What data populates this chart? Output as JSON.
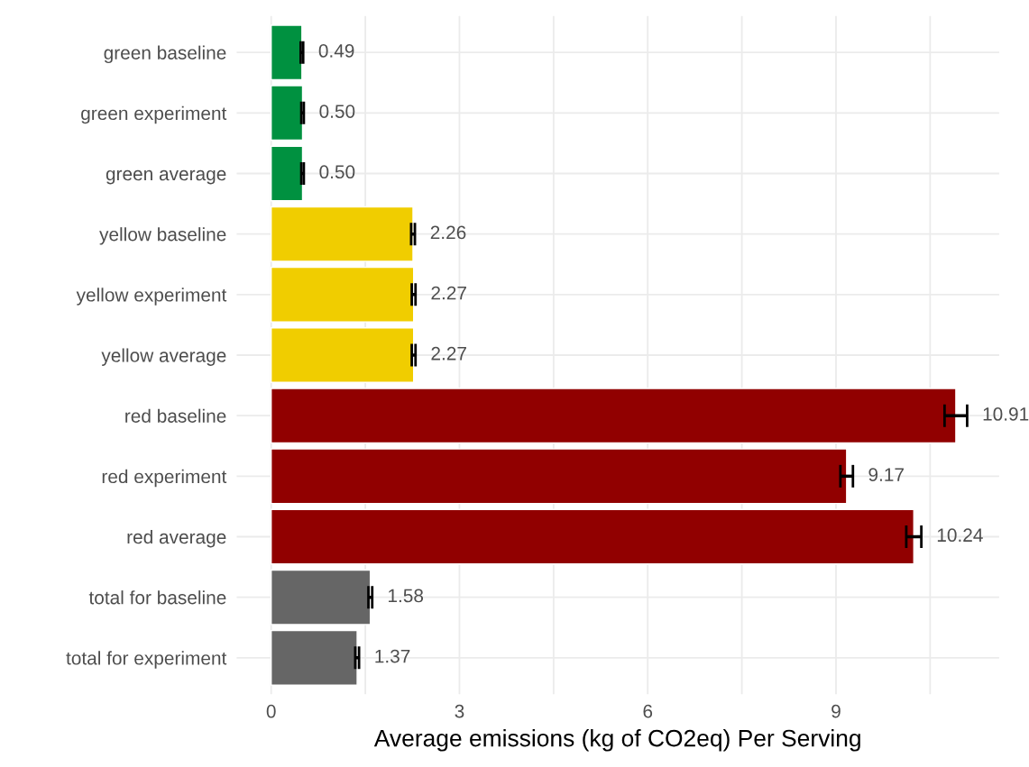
{
  "chart_data": {
    "type": "bar",
    "orientation": "horizontal",
    "xlabel": "Average emissions (kg of CO2eq) Per Serving",
    "categories": [
      "green baseline",
      "green experiment",
      "green average",
      "yellow baseline",
      "yellow experiment",
      "yellow average",
      "red baseline",
      "red experiment",
      "red average",
      "total for baseline",
      "total for experiment"
    ],
    "values": [
      0.49,
      0.5,
      0.5,
      2.26,
      2.27,
      2.27,
      10.91,
      9.17,
      10.24,
      1.58,
      1.37
    ],
    "errors": [
      0.02,
      0.02,
      0.02,
      0.03,
      0.03,
      0.03,
      0.18,
      0.1,
      0.12,
      0.03,
      0.03
    ],
    "value_labels": [
      "0.49",
      "0.50",
      "0.50",
      "2.26",
      "2.27",
      "2.27",
      "10.91",
      "9.17",
      "10.24",
      "1.58",
      "1.37"
    ],
    "colors": [
      "#009140",
      "#009140",
      "#009140",
      "#f0cd00",
      "#f0cd00",
      "#f0cd00",
      "#910000",
      "#910000",
      "#910000",
      "#666666",
      "#666666"
    ],
    "xlim": [
      -0.55,
      11.6
    ],
    "xticks": [
      0,
      {
        "value": 1.5,
        "label": null
      },
      3,
      {
        "value": 4.5,
        "label": null
      },
      6,
      {
        "value": 7.5,
        "label": null
      },
      9,
      {
        "value": 10.5,
        "label": null
      }
    ],
    "grid": true
  }
}
